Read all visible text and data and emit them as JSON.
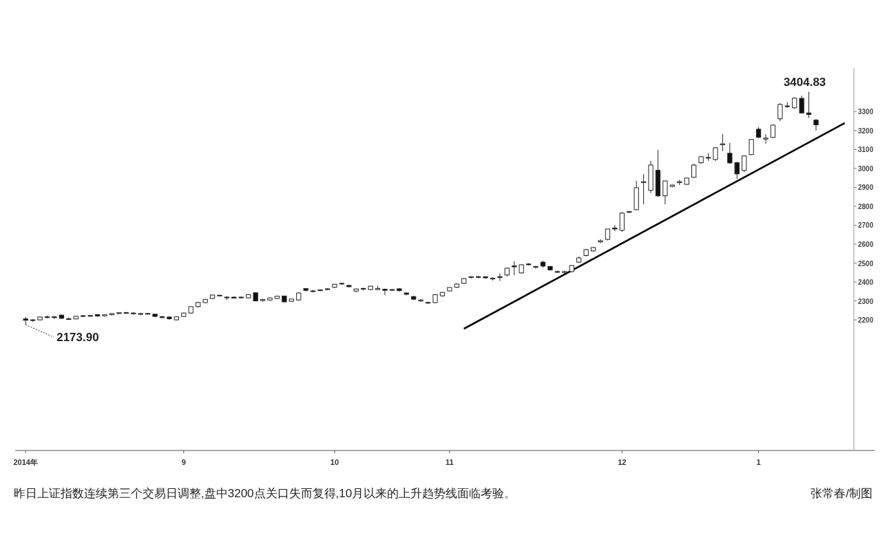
{
  "chart_data": {
    "type": "candlestick",
    "categories": [
      "2014年",
      null,
      null,
      null,
      null,
      null,
      null,
      null,
      null,
      null,
      null,
      null,
      null,
      null,
      null,
      null,
      null,
      null,
      null,
      null,
      null,
      null,
      "9",
      null,
      null,
      null,
      null,
      null,
      null,
      null,
      null,
      null,
      null,
      null,
      null,
      null,
      null,
      null,
      null,
      null,
      null,
      null,
      null,
      "10",
      null,
      null,
      null,
      null,
      null,
      null,
      null,
      null,
      null,
      null,
      null,
      null,
      null,
      null,
      null,
      "11",
      null,
      null,
      null,
      null,
      null,
      null,
      null,
      null,
      null,
      null,
      null,
      null,
      null,
      null,
      null,
      null,
      null,
      null,
      null,
      null,
      null,
      null,
      null,
      "12",
      null,
      null,
      null,
      null,
      null,
      null,
      null,
      null,
      null,
      null,
      null,
      null,
      null,
      null,
      null,
      null,
      null,
      null,
      "1",
      null,
      null,
      null,
      null,
      null,
      null,
      null,
      null,
      null,
      null,
      null,
      null
    ],
    "ohlc": [
      [
        2205,
        2215,
        2173.9,
        2198
      ],
      [
        2197,
        2203,
        2190,
        2200
      ],
      [
        2200,
        2218,
        2198,
        2215
      ],
      [
        2214,
        2222,
        2208,
        2216
      ],
      [
        2216,
        2220,
        2205,
        2212
      ],
      [
        2225,
        2228,
        2205,
        2208
      ],
      [
        2206,
        2212,
        2200,
        2204
      ],
      [
        2205,
        2222,
        2203,
        2219
      ],
      [
        2219,
        2225,
        2214,
        2222
      ],
      [
        2221,
        2226,
        2216,
        2223
      ],
      [
        2228,
        2230,
        2218,
        2220
      ],
      [
        2221,
        2230,
        2218,
        2227
      ],
      [
        2227,
        2236,
        2224,
        2233
      ],
      [
        2233,
        2240,
        2230,
        2238
      ],
      [
        2238,
        2242,
        2233,
        2237
      ],
      [
        2236,
        2240,
        2228,
        2233
      ],
      [
        2233,
        2237,
        2225,
        2230
      ],
      [
        2230,
        2236,
        2227,
        2234
      ],
      [
        2230,
        2232,
        2216,
        2218
      ],
      [
        2217,
        2220,
        2208,
        2212
      ],
      [
        2215,
        2218,
        2200,
        2206
      ],
      [
        2200,
        2218,
        2198,
        2216
      ],
      [
        2218,
        2238,
        2215,
        2236
      ],
      [
        2236,
        2272,
        2232,
        2270
      ],
      [
        2270,
        2295,
        2265,
        2292
      ],
      [
        2291,
        2310,
        2288,
        2308
      ],
      [
        2313,
        2333,
        2310,
        2331
      ],
      [
        2328,
        2332,
        2325,
        2330
      ],
      [
        2320,
        2325,
        2305,
        2318
      ],
      [
        2320,
        2322,
        2313,
        2315
      ],
      [
        2318,
        2322,
        2312,
        2320
      ],
      [
        2316,
        2335,
        2313,
        2333
      ],
      [
        2343,
        2346,
        2300,
        2300
      ],
      [
        2302,
        2310,
        2296,
        2307
      ],
      [
        2305,
        2318,
        2300,
        2316
      ],
      [
        2313,
        2327,
        2310,
        2325
      ],
      [
        2326,
        2328,
        2292,
        2295
      ],
      [
        2298,
        2312,
        2295,
        2310
      ],
      [
        2305,
        2345,
        2300,
        2342
      ],
      [
        2365,
        2366,
        2350,
        2356
      ],
      [
        2353,
        2358,
        2345,
        2350
      ],
      [
        2356,
        2362,
        2352,
        2358
      ],
      [
        2360,
        2368,
        2356,
        2364
      ],
      [
        2372,
        2390,
        2368,
        2388
      ],
      [
        2390,
        2396,
        2386,
        2393
      ],
      [
        2382,
        2385,
        2372,
        2375
      ],
      [
        2352,
        2366,
        2345,
        2363
      ],
      [
        2363,
        2370,
        2355,
        2366
      ],
      [
        2360,
        2380,
        2355,
        2378
      ],
      [
        2360,
        2380,
        2358,
        2366
      ],
      [
        2362,
        2365,
        2330,
        2356
      ],
      [
        2358,
        2362,
        2352,
        2360
      ],
      [
        2364,
        2368,
        2350,
        2354
      ],
      [
        2342,
        2345,
        2330,
        2335
      ],
      [
        2323,
        2326,
        2305,
        2309
      ],
      [
        2300,
        2308,
        2295,
        2305
      ],
      [
        2290,
        2296,
        2286,
        2292
      ],
      [
        2291,
        2335,
        2288,
        2333
      ],
      [
        2327,
        2348,
        2322,
        2345
      ],
      [
        2353,
        2372,
        2350,
        2371
      ],
      [
        2372,
        2392,
        2368,
        2389
      ],
      [
        2393,
        2420,
        2390,
        2418
      ],
      [
        2424,
        2430,
        2418,
        2428
      ],
      [
        2425,
        2432,
        2420,
        2428
      ],
      [
        2428,
        2430,
        2418,
        2422
      ],
      [
        2416,
        2425,
        2408,
        2420
      ],
      [
        2428,
        2446,
        2405,
        2426
      ],
      [
        2437,
        2475,
        2430,
        2473
      ],
      [
        2485,
        2510,
        2436,
        2480
      ],
      [
        2448,
        2494,
        2445,
        2491
      ],
      [
        2495,
        2500,
        2488,
        2491
      ],
      [
        2478,
        2485,
        2470,
        2482
      ],
      [
        2505,
        2512,
        2476,
        2484
      ],
      [
        2482,
        2485,
        2460,
        2464
      ],
      [
        2455,
        2460,
        2448,
        2452
      ],
      [
        2450,
        2460,
        2445,
        2455
      ],
      [
        2455,
        2490,
        2450,
        2487
      ],
      [
        2505,
        2535,
        2500,
        2527
      ],
      [
        2540,
        2575,
        2535,
        2571
      ],
      [
        2564,
        2585,
        2560,
        2582
      ],
      [
        2612,
        2625,
        2605,
        2618
      ],
      [
        2625,
        2680,
        2620,
        2680
      ],
      [
        2685,
        2700,
        2668,
        2680
      ],
      [
        2673,
        2770,
        2665,
        2764
      ],
      [
        2768,
        2775,
        2765,
        2772
      ],
      [
        2782,
        2935,
        2780,
        2898
      ],
      [
        2925,
        2970,
        2810,
        2930
      ],
      [
        2884,
        3040,
        2870,
        3018
      ],
      [
        2990,
        3098,
        2850,
        2855
      ],
      [
        2855,
        2935,
        2810,
        2934
      ],
      [
        2905,
        2915,
        2900,
        2912
      ],
      [
        2925,
        2940,
        2912,
        2930
      ],
      [
        2916,
        2950,
        2912,
        2949
      ],
      [
        2953,
        3025,
        2950,
        3018
      ],
      [
        3030,
        3065,
        3025,
        3062
      ],
      [
        3055,
        3080,
        3040,
        3058
      ],
      [
        3047,
        3112,
        3040,
        3109
      ],
      [
        3125,
        3182,
        3091,
        3130
      ],
      [
        3080,
        3135,
        3025,
        3029
      ],
      [
        3030,
        3035,
        2945,
        2971
      ],
      [
        2989,
        3070,
        2980,
        3066
      ],
      [
        3073,
        3155,
        3070,
        3153
      ],
      [
        3207,
        3218,
        3160,
        3164
      ],
      [
        3155,
        3180,
        3130,
        3160
      ],
      [
        3164,
        3232,
        3160,
        3229
      ],
      [
        3262,
        3345,
        3250,
        3338
      ],
      [
        3330,
        3350,
        3320,
        3327
      ],
      [
        3320,
        3375,
        3315,
        3371
      ],
      [
        3370,
        3385,
        3290,
        3293
      ],
      [
        3293,
        3404.83,
        3267,
        3285
      ],
      [
        3255,
        3262,
        3200,
        3230
      ],
      null,
      null,
      null,
      null
    ],
    "series": [
      {
        "type": "line",
        "color": "#000000",
        "values": [
          null,
          null,
          null,
          null,
          null,
          null,
          null,
          null,
          null,
          null,
          null,
          null,
          null,
          null,
          null,
          null,
          null,
          null,
          null,
          null,
          null,
          null,
          null,
          null,
          null,
          null,
          null,
          null,
          null,
          null,
          null,
          null,
          null,
          null,
          null,
          null,
          null,
          null,
          null,
          null,
          null,
          null,
          null,
          null,
          null,
          null,
          null,
          null,
          null,
          null,
          null,
          null,
          null,
          null,
          null,
          null,
          null,
          null,
          null,
          null,
          null,
          2153,
          null,
          null,
          null,
          null,
          null,
          null,
          null,
          null,
          null,
          null,
          null,
          null,
          null,
          null,
          null,
          null,
          null,
          null,
          null,
          null,
          null,
          null,
          null,
          null,
          null,
          null,
          null,
          null,
          null,
          null,
          null,
          null,
          null,
          null,
          null,
          null,
          null,
          null,
          null,
          null,
          null,
          null,
          null,
          null,
          null,
          null,
          null,
          null,
          null,
          null,
          null,
          null,
          3240
        ]
      }
    ],
    "ylim": [
      1510,
      3530
    ],
    "yticks": [
      2200,
      2300,
      2400,
      2500,
      2600,
      2700,
      2800,
      2900,
      3000,
      3100,
      3200,
      3300
    ],
    "annotations": [
      "3404.83",
      {
        "text": "2173.90",
        "x": "2014年",
        "y": 2173.9
      },
      "昨日上证指数连续第三个交易日调整,盘中3200点关口失而复得,10月以来的上升趋势线面临考验。",
      "张常春/制图"
    ]
  }
}
